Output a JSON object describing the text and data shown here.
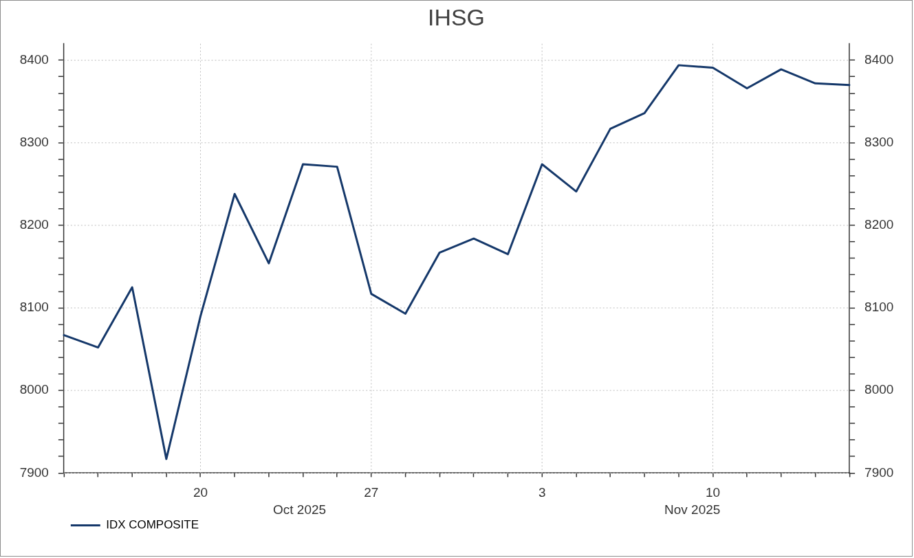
{
  "chart_data": {
    "type": "line",
    "title": "IHSG",
    "categories": [
      null,
      null,
      null,
      null,
      "20",
      null,
      null,
      null,
      null,
      "27",
      null,
      null,
      null,
      null,
      "3",
      null,
      null,
      null,
      null,
      "10",
      null,
      null,
      null,
      null
    ],
    "series": [
      {
        "name": "IDX COMPOSITE",
        "color": "#15386a",
        "values": [
          8067,
          8052,
          8125,
          7917,
          8090,
          8238,
          8154,
          8274,
          8271,
          8117,
          8093,
          8167,
          8184,
          8165,
          8274,
          8241,
          8317,
          8336,
          8394,
          8391,
          8366,
          8389,
          8372,
          8370
        ]
      }
    ],
    "ylim": [
      7900,
      8420
    ],
    "yticks": [
      7900,
      {
        "value": 7920,
        "label": null
      },
      {
        "value": 7940,
        "label": null
      },
      {
        "value": 7960,
        "label": null
      },
      {
        "value": 7980,
        "label": null
      },
      8000,
      {
        "value": 8020,
        "label": null
      },
      {
        "value": 8040,
        "label": null
      },
      {
        "value": 8060,
        "label": null
      },
      {
        "value": 8080,
        "label": null
      },
      8100,
      {
        "value": 8120,
        "label": null
      },
      {
        "value": 8140,
        "label": null
      },
      {
        "value": 8160,
        "label": null
      },
      {
        "value": 8180,
        "label": null
      },
      8200,
      {
        "value": 8220,
        "label": null
      },
      {
        "value": 8240,
        "label": null
      },
      {
        "value": 8260,
        "label": null
      },
      {
        "value": 8280,
        "label": null
      },
      8300,
      {
        "value": 8320,
        "label": null
      },
      {
        "value": 8340,
        "label": null
      },
      {
        "value": 8360,
        "label": null
      },
      {
        "value": 8380,
        "label": null
      },
      8400
    ],
    "y2lim": [
      7900,
      8420
    ],
    "y2ticks": [
      7900,
      {
        "value": 7920,
        "label": null
      },
      {
        "value": 7940,
        "label": null
      },
      {
        "value": 7960,
        "label": null
      },
      {
        "value": 7980,
        "label": null
      },
      8000,
      {
        "value": 8020,
        "label": null
      },
      {
        "value": 8040,
        "label": null
      },
      {
        "value": 8060,
        "label": null
      },
      {
        "value": 8080,
        "label": null
      },
      8100,
      {
        "value": 8120,
        "label": null
      },
      {
        "value": 8140,
        "label": null
      },
      {
        "value": 8160,
        "label": null
      },
      {
        "value": 8180,
        "label": null
      },
      8200,
      {
        "value": 8220,
        "label": null
      },
      {
        "value": 8240,
        "label": null
      },
      {
        "value": 8260,
        "label": null
      },
      {
        "value": 8280,
        "label": null
      },
      8300,
      {
        "value": 8320,
        "label": null
      },
      {
        "value": 8340,
        "label": null
      },
      {
        "value": 8360,
        "label": null
      },
      {
        "value": 8380,
        "label": null
      },
      8400
    ],
    "grid": true,
    "legend": "bottom left",
    "line_style": "solid",
    "annotations": [
      "Oct 2025",
      "Nov 2025"
    ]
  }
}
